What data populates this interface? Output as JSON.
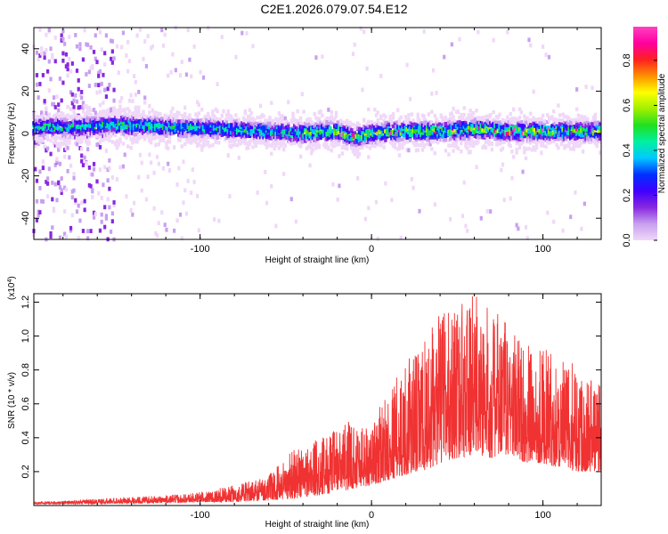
{
  "title": "C2E1.2026.079.07.54.E12",
  "colors": {
    "snr_line": "#f03232",
    "cmap": [
      "#f0d8f8",
      "#c8a0f0",
      "#8828e0",
      "#4000ff",
      "#0030ff",
      "#00c8ff",
      "#00f0a0",
      "#20e020",
      "#a0f000",
      "#ffff00",
      "#ff9000",
      "#ff2020",
      "#ff00a0",
      "#ff40c0"
    ]
  },
  "chart_data": [
    {
      "type": "heatmap",
      "xlabel": "Height of straight line (km)",
      "ylabel": "Frequency (Hz)",
      "xlim": [
        -197,
        134
      ],
      "ylim": [
        -50,
        50
      ],
      "xticks": [
        -100,
        0,
        100
      ],
      "yticks": [
        -40,
        -20,
        0,
        20,
        40
      ],
      "colorbar": {
        "label": "Normalized spectral amplitude",
        "range": [
          0,
          0.95
        ],
        "ticks": [
          0.0,
          0.2,
          0.4,
          0.6,
          0.8
        ]
      },
      "ridge_center_hz": [
        [
          -170,
          3
        ],
        [
          -150,
          4
        ],
        [
          -120,
          3
        ],
        [
          -90,
          2
        ],
        [
          -60,
          1
        ],
        [
          -40,
          0
        ],
        [
          -20,
          1
        ],
        [
          -10,
          -2
        ],
        [
          0,
          0
        ],
        [
          20,
          1
        ],
        [
          40,
          1
        ],
        [
          60,
          2
        ],
        [
          80,
          1
        ],
        [
          100,
          1
        ],
        [
          120,
          1
        ],
        [
          134,
          1
        ]
      ]
    },
    {
      "type": "line",
      "xlabel": "Height of straight line (km)",
      "ylabel": "SNR (10 * v/v)",
      "y_scale_note": "(x10",
      "y_scale_exp": "4",
      "xlim": [
        -197,
        134
      ],
      "ylim": [
        0,
        1.25
      ],
      "xticks": [
        -100,
        0,
        100
      ],
      "yticks": [
        0.2,
        0.4,
        0.6,
        0.8,
        1.0,
        1.2
      ],
      "envelope": [
        [
          -197,
          0.01,
          0.02
        ],
        [
          -160,
          0.01,
          0.04
        ],
        [
          -120,
          0.015,
          0.06
        ],
        [
          -100,
          0.02,
          0.08
        ],
        [
          -80,
          0.02,
          0.12
        ],
        [
          -60,
          0.03,
          0.18
        ],
        [
          -45,
          0.04,
          0.35
        ],
        [
          -30,
          0.06,
          0.4
        ],
        [
          -10,
          0.1,
          0.52
        ],
        [
          0,
          0.12,
          0.48
        ],
        [
          10,
          0.15,
          0.7
        ],
        [
          20,
          0.18,
          0.85
        ],
        [
          30,
          0.2,
          0.95
        ],
        [
          40,
          0.25,
          1.15
        ],
        [
          50,
          0.28,
          1.2
        ],
        [
          60,
          0.3,
          1.25
        ],
        [
          70,
          0.28,
          1.15
        ],
        [
          80,
          0.3,
          1.1
        ],
        [
          90,
          0.25,
          0.95
        ],
        [
          100,
          0.25,
          0.95
        ],
        [
          110,
          0.22,
          0.85
        ],
        [
          120,
          0.2,
          0.85
        ],
        [
          134,
          0.2,
          0.75
        ]
      ]
    }
  ]
}
